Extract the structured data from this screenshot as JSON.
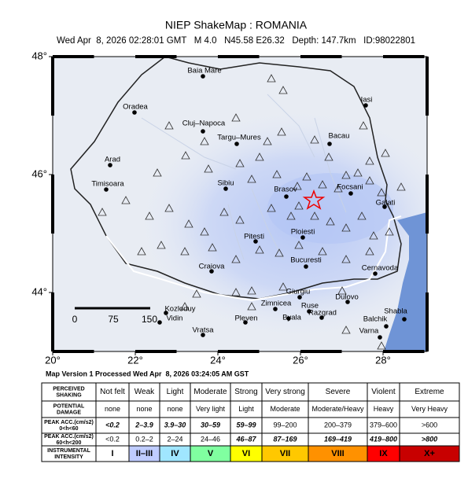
{
  "header": {
    "title": "NIEP ShakeMap : ROMANIA",
    "subtitle": "Wed Apr  8, 2026 02:28:01 GMT   M 4.0   N45.58 E26.32   Depth: 147.7km   ID:98022801"
  },
  "map": {
    "lon_ticks": [
      {
        "value": 20,
        "label": "20°"
      },
      {
        "value": 22,
        "label": "22°"
      },
      {
        "value": 24,
        "label": "24°"
      },
      {
        "value": 26,
        "label": "26°"
      },
      {
        "value": 28,
        "label": "28°"
      }
    ],
    "lat_ticks": [
      {
        "value": 48,
        "label": "48°"
      },
      {
        "value": 46,
        "label": "46°"
      },
      {
        "value": 44,
        "label": "44°"
      }
    ],
    "cities": [
      "Baia Mare",
      "Oradea",
      "Cluj–Napoca",
      "Targu–Mures",
      "Iasi",
      "Bacau",
      "Arad",
      "Timisoara",
      "Sibiu",
      "Brasov",
      "Focsani",
      "Galati",
      "Ploiesti",
      "Pitesti",
      "Bucuresti",
      "Cernavoda",
      "Craiova",
      "Giurgiu",
      "Zimnicea",
      "Ruse",
      "Dulovo",
      "Kozloduy",
      "Vidin",
      "Pleven",
      "Byala",
      "Razgrad",
      "Shabla",
      "Balchik",
      "Varna",
      "Vratsa"
    ],
    "scale_labels": [
      "0",
      "75",
      "150"
    ]
  },
  "footer": "Map Version 1 Processed Wed Apr  8, 2026 03:24:05 AM GST",
  "legend": {
    "rows": [
      {
        "header": [
          "PERCEIVED",
          "SHAKING"
        ],
        "cells": [
          "Not felt",
          "Weak",
          "Light",
          "Moderate",
          "Strong",
          "Very strong",
          "Severe",
          "Violent",
          "Extreme"
        ]
      },
      {
        "header": [
          "POTENTIAL",
          "DAMAGE"
        ],
        "cells": [
          "none",
          "none",
          "none",
          "Very light",
          "Light",
          "Moderate",
          "Moderate/Heavy",
          "Heavy",
          "Very Heavy"
        ]
      },
      {
        "header": [
          "PEAK ACC.(cm/s2)",
          "0<h<60"
        ],
        "cells": [
          "<0.2",
          "2–3.9",
          "3.9–30",
          "30–59",
          "59–99",
          "99–200",
          "200–379",
          "379–600",
          ">600"
        ]
      },
      {
        "header": [
          "PEAK ACC.(cm/s2)",
          "60<h<200"
        ],
        "cells": [
          "<0.2",
          "0.2–2",
          "2–24",
          "24–46",
          "46–87",
          "87–169",
          "169–419",
          "419–800",
          ">800"
        ]
      },
      {
        "header": [
          "INSTRUMENTAL",
          "INTENSITY"
        ],
        "cells": [
          "I",
          "II–III",
          "IV",
          "V",
          "VI",
          "VII",
          "VIII",
          "IX",
          "X+"
        ]
      }
    ]
  }
}
